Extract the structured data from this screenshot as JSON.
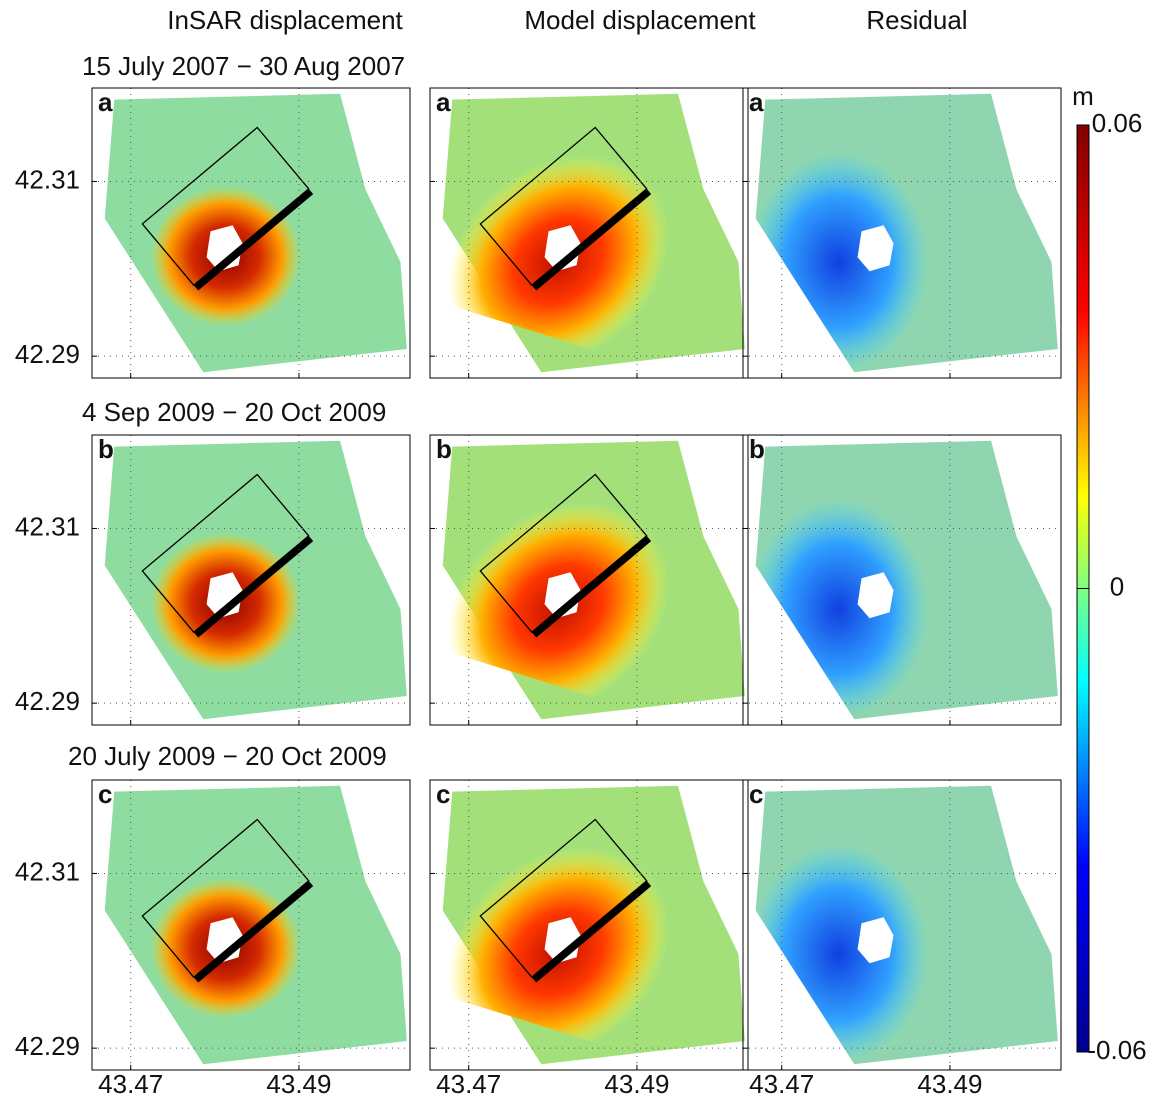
{
  "chart_data": {
    "type": "map-grid",
    "columns": [
      "InSAR displacement",
      "Model displacement",
      "Residual"
    ],
    "rows": [
      {
        "title": "15 July 2007 − 30 Aug 2007",
        "label": "a"
      },
      {
        "title": "4 Sep 2009 − 20 Oct 2009",
        "label": "b"
      },
      {
        "title": "20 July 2009 − 20 Oct 2009",
        "label": "c"
      }
    ],
    "xlim": [
      43.4654,
      43.5032
    ],
    "ylim": [
      42.2875,
      42.3207
    ],
    "xticks": [
      43.47,
      43.49
    ],
    "yticks": [
      42.29,
      42.31
    ],
    "grid": true,
    "colorbar": {
      "label": "m",
      "lim": [
        -0.06,
        0.06
      ],
      "ticks": [
        -0.06,
        0,
        0.06
      ],
      "colors": [
        "#00008f",
        "#0000ff",
        "#00ffff",
        "#ffff00",
        "#ff0000",
        "#800000"
      ]
    }
  }
}
